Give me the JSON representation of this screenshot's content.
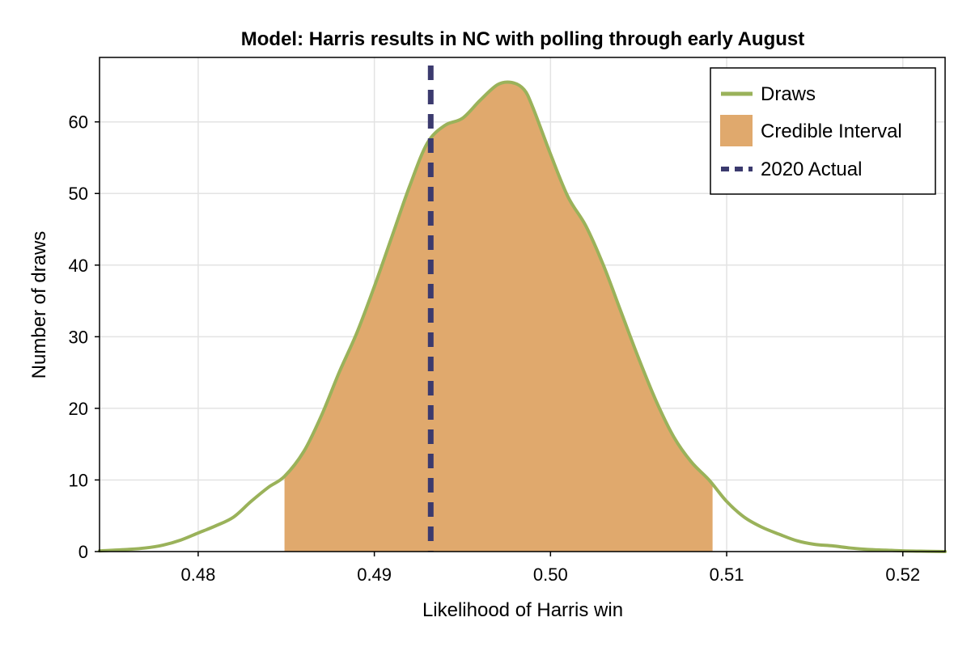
{
  "chart_data": {
    "type": "area",
    "title": "Model: Harris results in NC with polling through early August",
    "xlabel": "Likelihood of Harris win",
    "ylabel": "Number of draws",
    "xlim": [
      0.4744,
      0.5224
    ],
    "ylim": [
      0,
      69
    ],
    "xticks": [
      0.48,
      0.49,
      0.5,
      0.51,
      0.52
    ],
    "xtick_labels": [
      "0.48",
      "0.49",
      "0.50",
      "0.51",
      "0.52"
    ],
    "yticks": [
      0,
      10,
      20,
      30,
      40,
      50,
      60
    ],
    "ytick_labels": [
      "0",
      "10",
      "20",
      "30",
      "40",
      "50",
      "60"
    ],
    "grid": true,
    "legend_position": "top-right",
    "series": [
      {
        "name": "Draws",
        "kind": "line",
        "x": [
          0.4744,
          0.476,
          0.477,
          0.478,
          0.479,
          0.48,
          0.481,
          0.482,
          0.483,
          0.484,
          0.4849,
          0.486,
          0.487,
          0.488,
          0.489,
          0.49,
          0.491,
          0.492,
          0.493,
          0.494,
          0.495,
          0.496,
          0.497,
          0.4978,
          0.4985,
          0.499,
          0.5,
          0.501,
          0.502,
          0.503,
          0.504,
          0.505,
          0.506,
          0.507,
          0.508,
          0.509,
          0.51,
          0.511,
          0.512,
          0.513,
          0.514,
          0.515,
          0.516,
          0.517,
          0.518,
          0.519,
          0.52,
          0.521,
          0.5224
        ],
        "y": [
          0.1,
          0.3,
          0.5,
          0.9,
          1.6,
          2.6,
          3.6,
          4.8,
          7.0,
          9.0,
          10.5,
          14.0,
          19.0,
          25.0,
          30.5,
          37.0,
          44.0,
          51.0,
          57.0,
          59.5,
          60.5,
          63.0,
          65.2,
          65.5,
          64.5,
          62.0,
          55.5,
          49.5,
          45.5,
          40.0,
          33.5,
          27.0,
          21.0,
          16.0,
          12.5,
          10.0,
          7.0,
          4.8,
          3.4,
          2.4,
          1.5,
          1.0,
          0.8,
          0.5,
          0.3,
          0.2,
          0.1,
          0.05,
          0.0
        ],
        "color": "#9ab25a"
      },
      {
        "name": "Credible Interval",
        "kind": "band",
        "x_range": [
          0.4849,
          0.5092
        ],
        "color": "#e0a96d"
      },
      {
        "name": "2020 Actual",
        "kind": "vline",
        "x": 0.4932,
        "color": "#3b3a6e"
      }
    ]
  }
}
